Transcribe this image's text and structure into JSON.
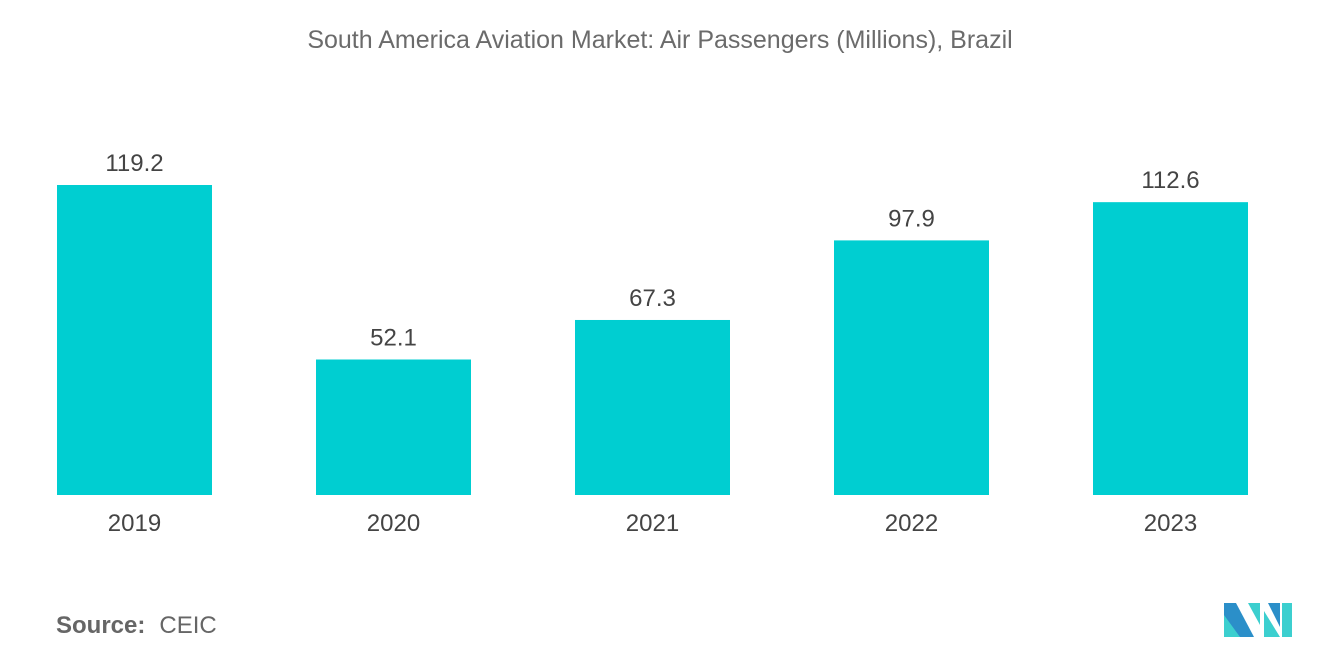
{
  "chart_data": {
    "type": "bar",
    "title": "South America Aviation Market: Air Passengers (Millions), Brazil",
    "categories": [
      "2019",
      "2020",
      "2021",
      "2022",
      "2023"
    ],
    "values": [
      119.2,
      52.1,
      67.3,
      97.9,
      112.6
    ],
    "value_labels": [
      "119.2",
      "52.1",
      "67.3",
      "97.9",
      "112.6"
    ],
    "xlabel": "",
    "ylabel": "",
    "ylim": [
      0,
      119.2
    ],
    "grid": false,
    "legend": "none",
    "bar_color": "#00ced1"
  },
  "source": {
    "label": "Source:",
    "value": "CEIC"
  },
  "logo": {
    "name": "mordor-intelligence-logo",
    "colors": [
      "#2b8fc9",
      "#3ccfcf"
    ]
  }
}
